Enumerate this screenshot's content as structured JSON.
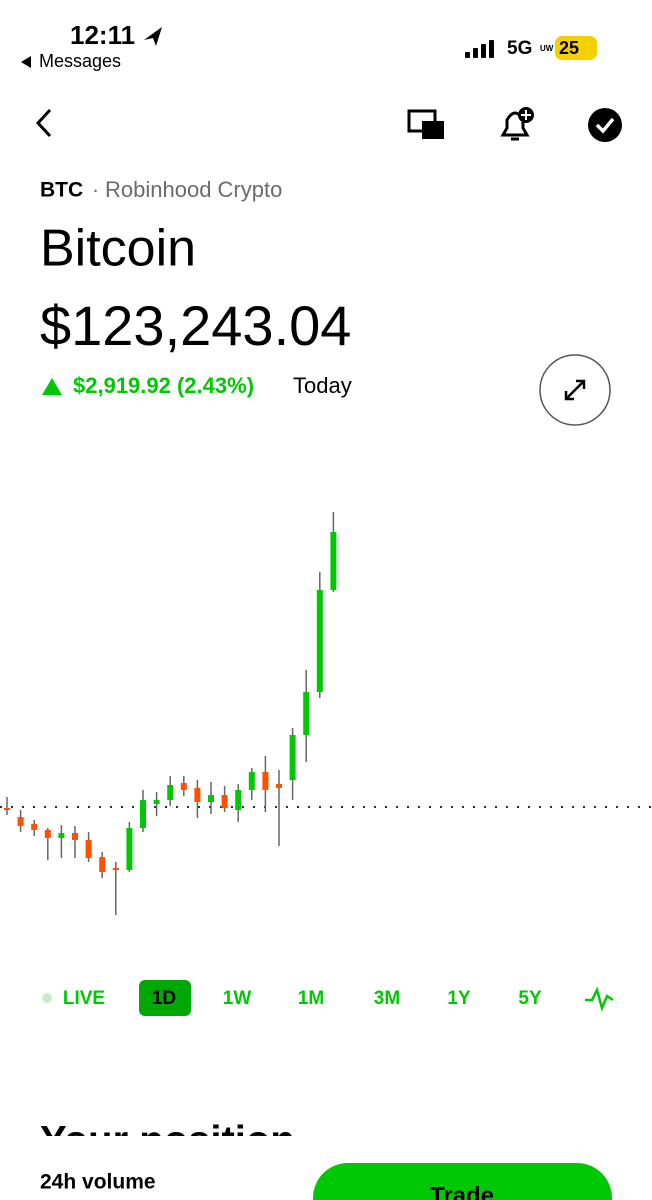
{
  "status_bar": {
    "time": "12:11",
    "back_app": "Messages",
    "network": "5G",
    "network_badge": "UW",
    "battery": "25"
  },
  "header": {
    "symbol": "BTC",
    "source": "Robinhood Crypto",
    "name": "Bitcoin",
    "price": "$123,243.04",
    "change": "$2,919.92 (2.43%)",
    "change_period": "Today"
  },
  "chart_data": {
    "type": "candlestick",
    "up_color": "#00c805",
    "down_color": "#ff5000",
    "ylim": [
      119070,
      123530
    ],
    "reference": 120323.12,
    "open": [
      120312,
      120217,
      120142,
      120079,
      119994,
      120047,
      119973,
      119792,
      119675,
      119654,
      120100,
      120355,
      120397,
      120578,
      120525,
      120376,
      120450,
      120291,
      120504,
      120695,
      120567,
      120610,
      121088,
      121544,
      122628
    ],
    "high": [
      120429,
      120291,
      120185,
      120100,
      120132,
      120121,
      120057,
      119845,
      119739,
      120164,
      120504,
      120482,
      120652,
      120652,
      120610,
      120589,
      120546,
      120567,
      120737,
      120865,
      120716,
      121162,
      121778,
      122819,
      123456
    ],
    "low": [
      120238,
      120057,
      120015,
      119760,
      119781,
      119781,
      119739,
      119569,
      119176,
      119633,
      120057,
      120227,
      120334,
      120440,
      120206,
      120249,
      120270,
      120164,
      120397,
      120270,
      119909,
      120397,
      120801,
      121481,
      122606
    ],
    "close": [
      120291,
      120121,
      120079,
      119994,
      120047,
      119973,
      119781,
      119633,
      119654,
      120100,
      120397,
      120397,
      120557,
      120504,
      120376,
      120450,
      120312,
      120504,
      120695,
      120504,
      120525,
      121088,
      121544,
      122628,
      123243
    ]
  },
  "range_tabs": {
    "items": [
      "LIVE",
      "1D",
      "1W",
      "1M",
      "3M",
      "1Y",
      "5Y"
    ],
    "selected": 1
  },
  "position": {
    "title": "Your position"
  },
  "footer": {
    "volume_label": "24h volume",
    "trade_button": "Trade"
  }
}
